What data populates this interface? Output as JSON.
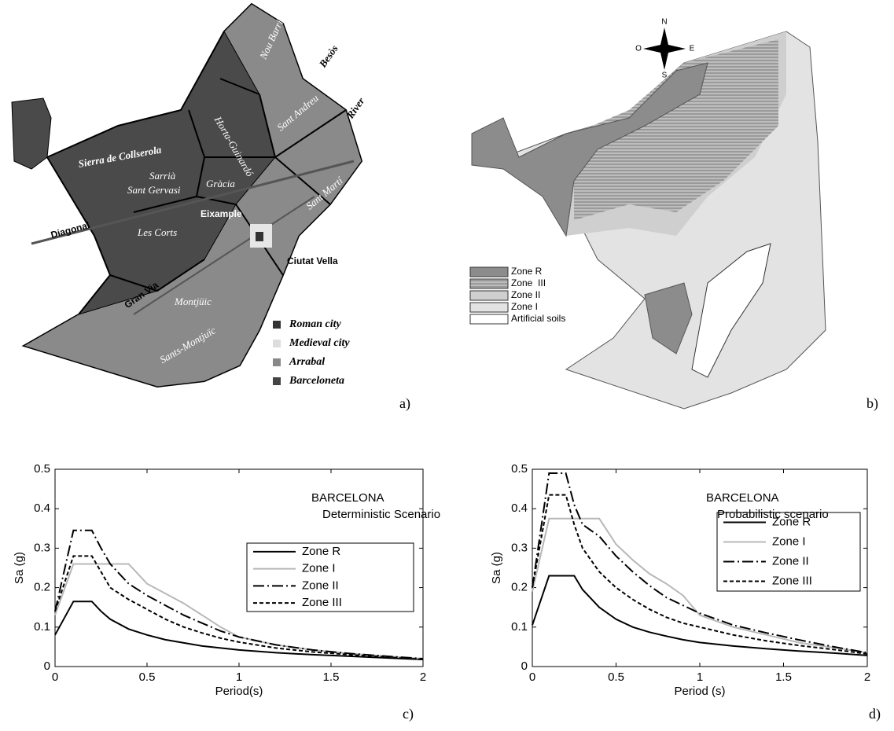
{
  "map_a": {
    "labels": [
      "Nou Barris",
      "Besòs",
      "River",
      "Horta-Guinardó",
      "Sant Andreu",
      "Sierra de Collserola",
      "Sarrià",
      "Sant Gervasi",
      "Gràcia",
      "Sant Martí",
      "Diagonal",
      "Les Corts",
      "Eixample",
      "Ciutat Vella",
      "Gran Via",
      "Montjüic",
      "Sants-Montjuïc"
    ],
    "legend": [
      "Roman city",
      "Medieval city",
      "Arrabal",
      "Barceloneta"
    ],
    "panel_label": "a)"
  },
  "map_b": {
    "compass": [
      "N",
      "S",
      "E",
      "O"
    ],
    "legend": [
      "Zone R",
      "Zone  III",
      "Zone II",
      "Zone I",
      "Artificial soils"
    ],
    "panel_label": "b)"
  },
  "chart_data": [
    {
      "type": "line",
      "title": "BARCELONA",
      "subtitle": "Deterministic Scenario",
      "xlabel": "Period(s)",
      "ylabel": "Sa (g)",
      "panel_label": "c)",
      "x": [
        0,
        0.1,
        0.15,
        0.2,
        0.25,
        0.3,
        0.4,
        0.5,
        0.6,
        0.7,
        0.8,
        0.9,
        1.0,
        1.2,
        1.4,
        1.6,
        1.8,
        2.0
      ],
      "xlim": [
        0,
        2
      ],
      "xticks": [
        0,
        0.5,
        1,
        1.5,
        2
      ],
      "ylim": [
        0,
        0.5
      ],
      "yticks": [
        0,
        0.1,
        0.2,
        0.3,
        0.4,
        0.5
      ],
      "series": [
        {
          "name": "Zone R",
          "color": "#000000",
          "dash": "solid",
          "values": [
            0.08,
            0.165,
            0.165,
            0.165,
            0.14,
            0.12,
            0.095,
            0.08,
            0.068,
            0.06,
            0.052,
            0.047,
            0.042,
            0.035,
            0.03,
            0.026,
            0.022,
            0.018
          ]
        },
        {
          "name": "Zone I",
          "color": "#b8b8b8",
          "dash": "solid",
          "values": [
            0.13,
            0.26,
            0.26,
            0.26,
            0.26,
            0.26,
            0.26,
            0.21,
            0.185,
            0.16,
            0.13,
            0.1,
            0.075,
            0.055,
            0.042,
            0.033,
            0.026,
            0.02
          ]
        },
        {
          "name": "Zone II",
          "color": "#000000",
          "dash": "dashdot",
          "values": [
            0.14,
            0.345,
            0.345,
            0.345,
            0.3,
            0.26,
            0.21,
            0.18,
            0.155,
            0.13,
            0.11,
            0.09,
            0.075,
            0.055,
            0.042,
            0.033,
            0.026,
            0.02
          ]
        },
        {
          "name": "Zone III",
          "color": "#000000",
          "dash": "dashed",
          "values": [
            0.14,
            0.28,
            0.28,
            0.28,
            0.24,
            0.2,
            0.17,
            0.145,
            0.12,
            0.1,
            0.085,
            0.072,
            0.062,
            0.047,
            0.037,
            0.03,
            0.024,
            0.018
          ]
        }
      ]
    },
    {
      "type": "line",
      "title": "BARCELONA",
      "subtitle": "Probabilistic scenario",
      "xlabel": "Period (s)",
      "ylabel": "Sa (g)",
      "panel_label": "d)",
      "x": [
        0,
        0.1,
        0.15,
        0.2,
        0.25,
        0.3,
        0.4,
        0.5,
        0.6,
        0.7,
        0.8,
        0.9,
        1.0,
        1.2,
        1.4,
        1.6,
        1.8,
        2.0
      ],
      "xlim": [
        0,
        2
      ],
      "xticks": [
        0,
        0.5,
        1,
        1.5,
        2
      ],
      "ylim": [
        0,
        0.5
      ],
      "yticks": [
        0,
        0.1,
        0.2,
        0.3,
        0.4,
        0.5
      ],
      "series": [
        {
          "name": "Zone R",
          "color": "#000000",
          "dash": "solid",
          "values": [
            0.105,
            0.23,
            0.23,
            0.23,
            0.23,
            0.195,
            0.15,
            0.12,
            0.1,
            0.087,
            0.077,
            0.068,
            0.061,
            0.052,
            0.045,
            0.039,
            0.034,
            0.028
          ]
        },
        {
          "name": "Zone I",
          "color": "#b8b8b8",
          "dash": "solid",
          "values": [
            0.19,
            0.375,
            0.375,
            0.375,
            0.375,
            0.375,
            0.375,
            0.31,
            0.27,
            0.235,
            0.21,
            0.18,
            0.13,
            0.1,
            0.08,
            0.06,
            0.048,
            0.035
          ]
        },
        {
          "name": "Zone II",
          "color": "#000000",
          "dash": "dashdot",
          "values": [
            0.2,
            0.49,
            0.49,
            0.49,
            0.41,
            0.36,
            0.33,
            0.28,
            0.24,
            0.205,
            0.175,
            0.155,
            0.135,
            0.105,
            0.085,
            0.067,
            0.05,
            0.035
          ]
        },
        {
          "name": "Zone III",
          "color": "#000000",
          "dash": "dashed",
          "values": [
            0.2,
            0.435,
            0.435,
            0.435,
            0.36,
            0.3,
            0.24,
            0.2,
            0.17,
            0.145,
            0.125,
            0.11,
            0.1,
            0.08,
            0.065,
            0.053,
            0.043,
            0.032
          ]
        }
      ]
    }
  ]
}
